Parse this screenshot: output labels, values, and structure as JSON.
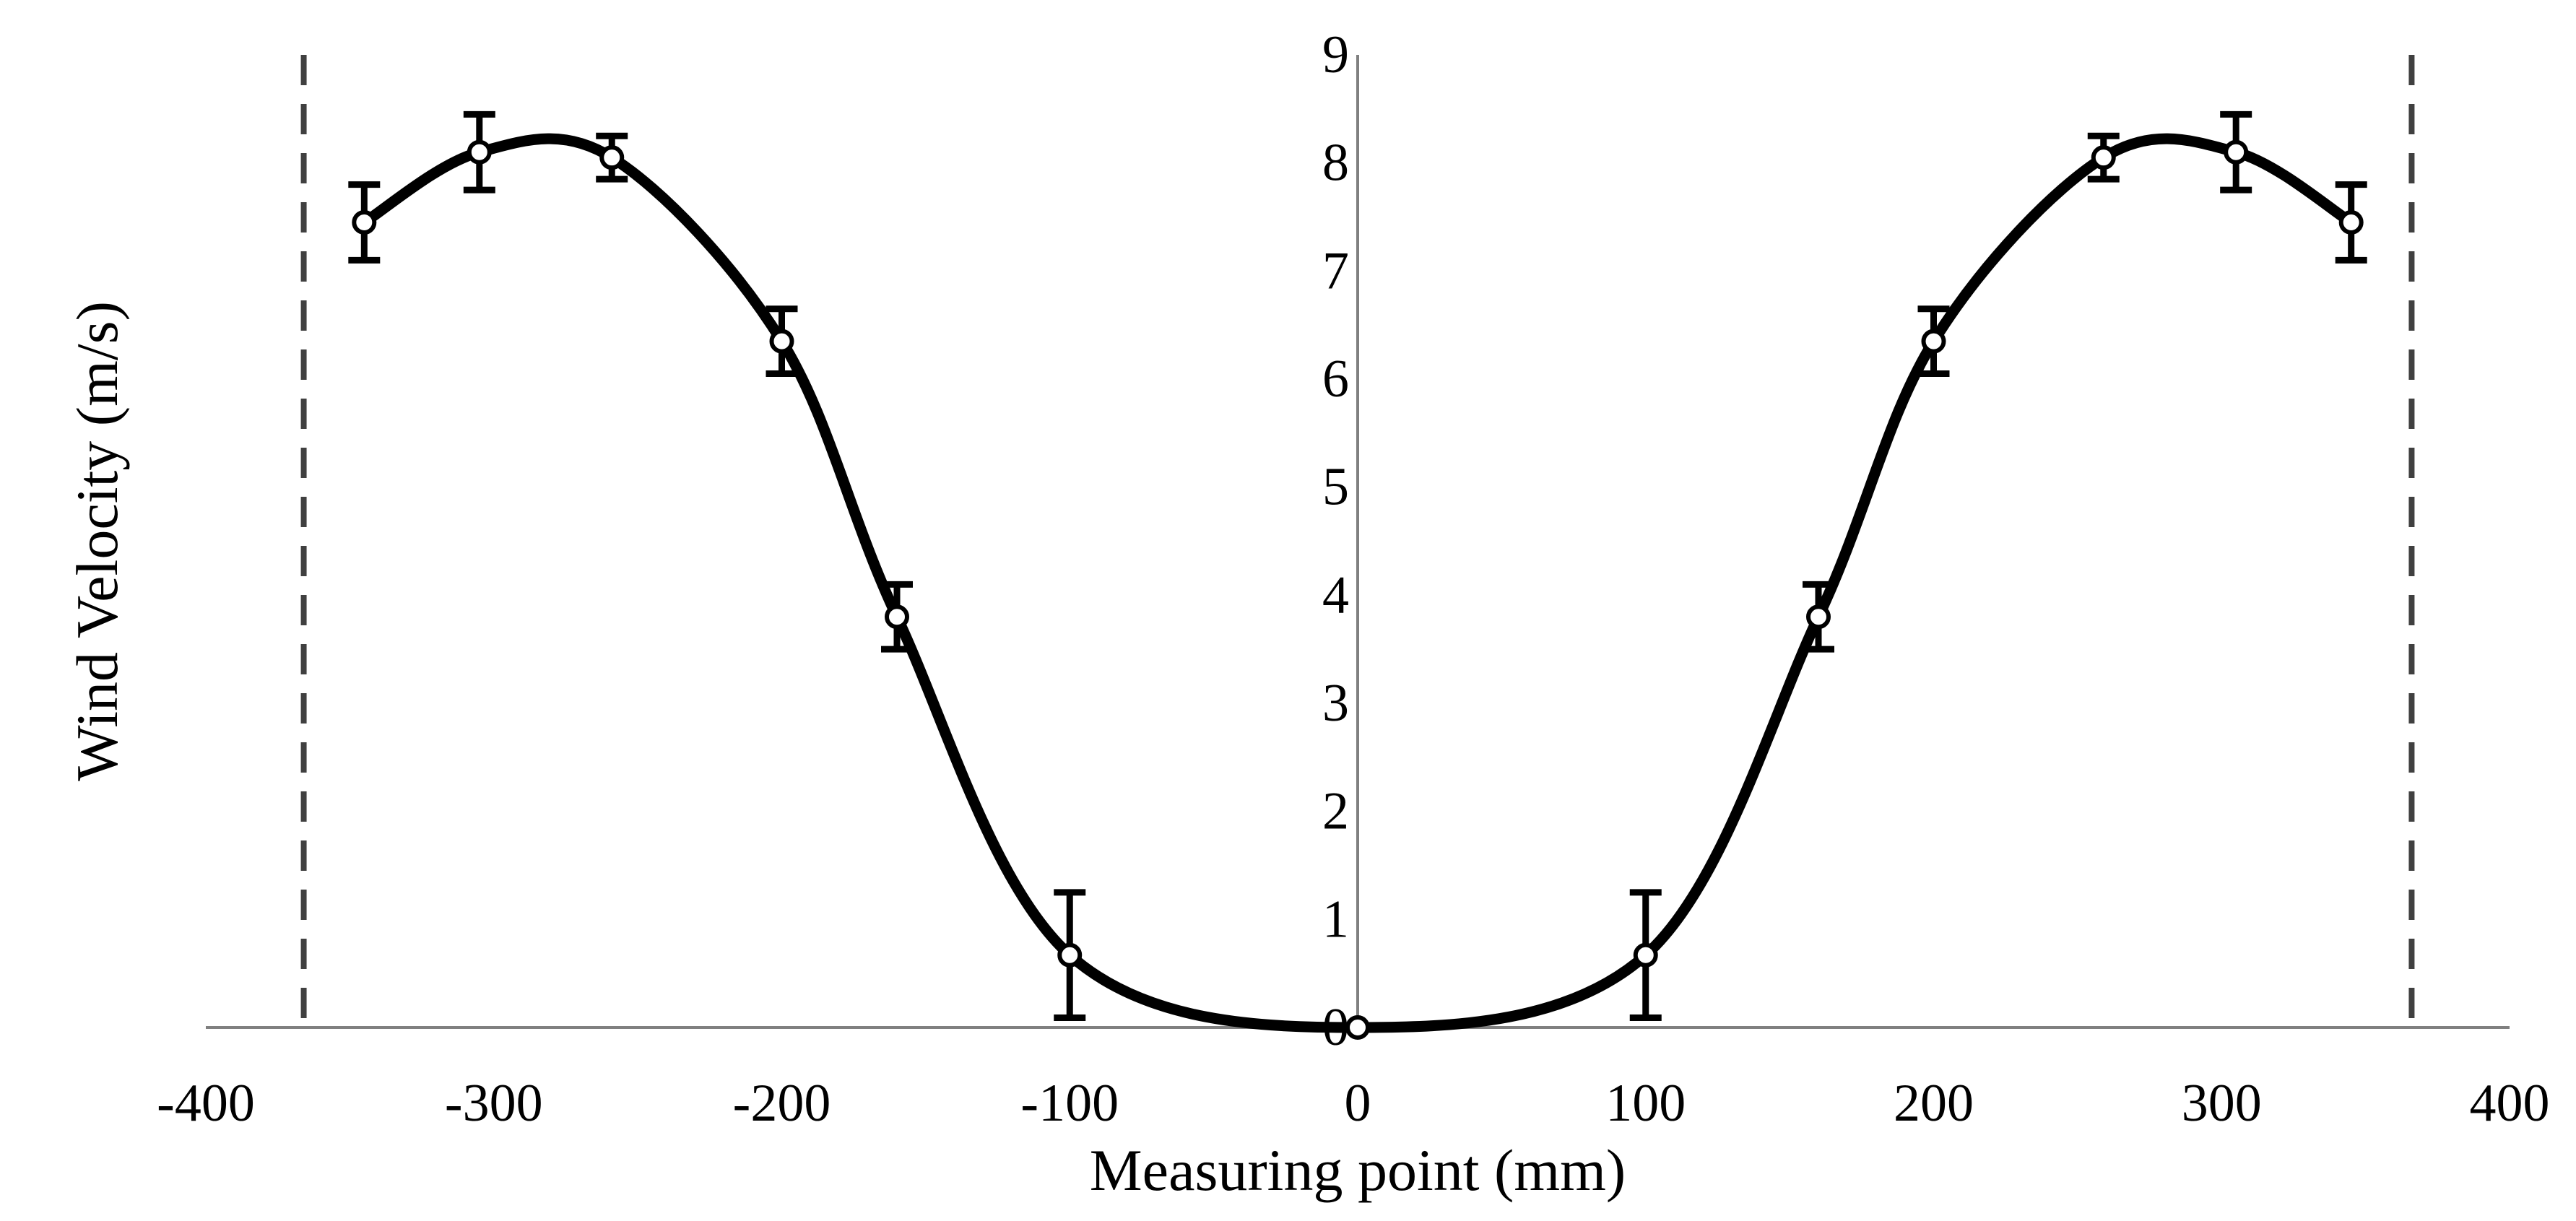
{
  "chart_data": {
    "type": "scatter",
    "xlabel": "Measuring point (mm)",
    "ylabel": "Wind Velocity (m/s)",
    "xlim": [
      -400,
      400
    ],
    "ylim": [
      0,
      9
    ],
    "x_ticks": [
      "-400",
      "-300",
      "-200",
      "-100",
      "0",
      "100",
      "200",
      "300",
      "400"
    ],
    "y_ticks": [
      "0",
      "1",
      "2",
      "3",
      "4",
      "5",
      "6",
      "7",
      "8",
      "9"
    ],
    "grid": false,
    "legend": "none",
    "smoothed_line": true,
    "series": [
      {
        "x": [
          -345,
          -305,
          -259,
          -200,
          -160,
          -100,
          0,
          100,
          160,
          200,
          259,
          305,
          345
        ],
        "values": [
          7.45,
          8.1,
          8.05,
          6.35,
          3.8,
          0.67,
          0,
          0.67,
          3.8,
          6.35,
          8.05,
          8.1,
          7.45
        ],
        "error": [
          0.35,
          0.35,
          0.2,
          0.3,
          0.3,
          0.58,
          0,
          0.58,
          0.3,
          0.3,
          0.2,
          0.35,
          0.35
        ]
      }
    ],
    "reference_lines": [
      {
        "orientation": "vertical",
        "x": -366,
        "style": "dashed"
      },
      {
        "orientation": "vertical",
        "x": 366,
        "style": "dashed"
      }
    ],
    "colors": {
      "line": "#000000",
      "marker_fill": "#ffffff",
      "axis": "#808080",
      "reference": "#404040"
    }
  }
}
